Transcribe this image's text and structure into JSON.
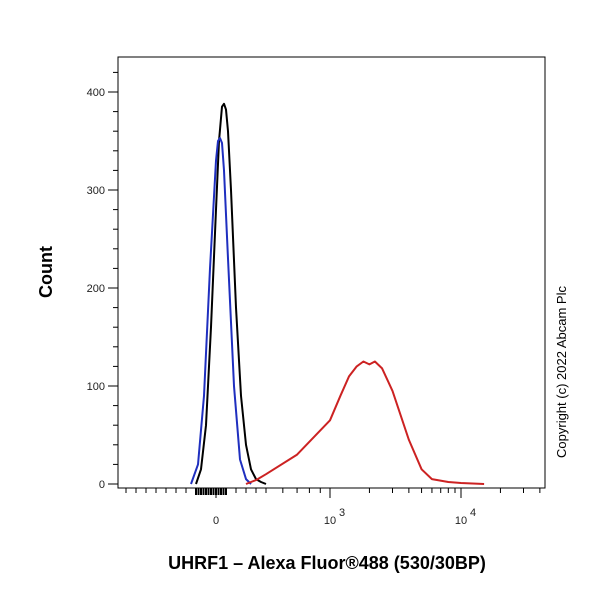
{
  "chart_data": {
    "type": "line",
    "xlabel": "UHRF1 – Alexa Fluor®488 (530/30BP)",
    "ylabel": "Count",
    "ylim": [
      0,
      450
    ],
    "x_scale": "biexponential",
    "y_ticks": [
      0,
      100,
      200,
      300,
      400
    ],
    "x_tick_labels": [
      {
        "base": "0",
        "exp": ""
      },
      {
        "base": "10",
        "exp": "3"
      },
      {
        "base": "10",
        "exp": "4"
      }
    ],
    "copyright": "Copyright (c) 2022 Abcam Plc",
    "grid": false,
    "series": [
      {
        "color": "#000000",
        "x": [
          -200,
          -150,
          -100,
          -50,
          0,
          30,
          60,
          80,
          100,
          120,
          150,
          200,
          250,
          300,
          350,
          400,
          450,
          500
        ],
        "values": [
          0,
          15,
          60,
          160,
          280,
          350,
          385,
          388,
          382,
          360,
          300,
          180,
          90,
          40,
          15,
          5,
          2,
          0
        ]
      },
      {
        "color": "#1f2fbf",
        "x": [
          -250,
          -180,
          -120,
          -60,
          0,
          20,
          40,
          60,
          80,
          120,
          180,
          240,
          300,
          350
        ],
        "values": [
          0,
          20,
          90,
          220,
          330,
          350,
          353,
          348,
          320,
          230,
          100,
          25,
          5,
          0
        ]
      },
      {
        "color": "#cc2222",
        "x": [
          300,
          350,
          400,
          500,
          700,
          1000,
          1200,
          1400,
          1600,
          1800,
          2000,
          2200,
          2500,
          3000,
          4000,
          5000,
          6000,
          8000,
          10000,
          15000
        ],
        "values": [
          0,
          2,
          4,
          10,
          30,
          65,
          90,
          110,
          120,
          125,
          122,
          125,
          118,
          95,
          45,
          15,
          5,
          2,
          1,
          0
        ]
      }
    ]
  }
}
